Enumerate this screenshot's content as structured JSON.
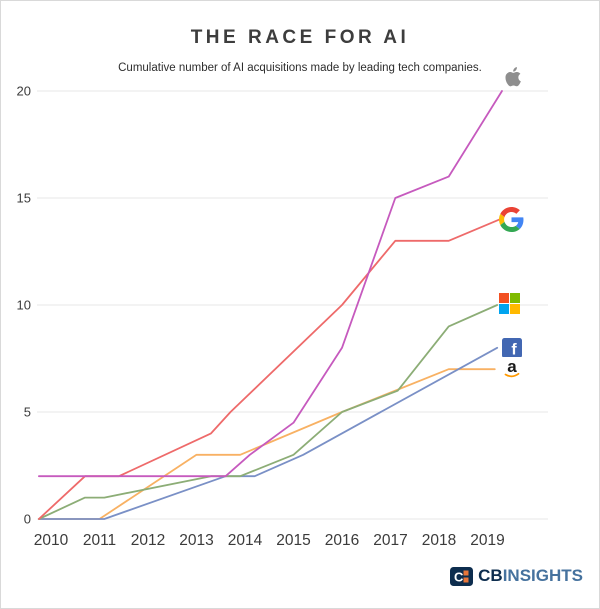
{
  "chart_data": {
    "type": "line",
    "title": "THE RACE FOR AI",
    "subtitle": "Cumulative number of AI acquisitions made by leading tech companies.",
    "xlabel": "",
    "ylabel": "",
    "x_ticks": [
      2010,
      2011,
      2012,
      2013,
      2014,
      2015,
      2016,
      2017,
      2018,
      2019
    ],
    "y_ticks": [
      0,
      5,
      10,
      15,
      20
    ],
    "xlim": [
      2009.75,
      2020.2
    ],
    "ylim": [
      0,
      20.5
    ],
    "grid": "horizontal",
    "legend_position": "right-end-icons",
    "series": [
      {
        "name": "Apple",
        "icon": "apple-logo",
        "color": "#c65abe",
        "end_value": 20,
        "points": [
          [
            2009.75,
            2
          ],
          [
            2013.6,
            2
          ],
          [
            2014.1,
            3
          ],
          [
            2015,
            4.5
          ],
          [
            2016,
            8
          ],
          [
            2017.1,
            15
          ],
          [
            2018.2,
            16
          ],
          [
            2019.3,
            20
          ]
        ]
      },
      {
        "name": "Google",
        "icon": "google-logo",
        "color": "#ee6a6a",
        "end_value": 14,
        "points": [
          [
            2009.75,
            0
          ],
          [
            2010.7,
            2
          ],
          [
            2011.4,
            2
          ],
          [
            2013.3,
            4
          ],
          [
            2013.7,
            5
          ],
          [
            2016,
            10
          ],
          [
            2017.1,
            13
          ],
          [
            2018.2,
            13
          ],
          [
            2019.25,
            14
          ]
        ]
      },
      {
        "name": "Microsoft",
        "icon": "microsoft-logo",
        "color": "#8cad76",
        "end_value": 10,
        "points": [
          [
            2009.75,
            0
          ],
          [
            2010.7,
            1
          ],
          [
            2011.1,
            1
          ],
          [
            2013.3,
            2
          ],
          [
            2013.9,
            2
          ],
          [
            2015,
            3
          ],
          [
            2016,
            5
          ],
          [
            2017.15,
            6
          ],
          [
            2018.2,
            9
          ],
          [
            2019.2,
            10
          ]
        ]
      },
      {
        "name": "Facebook",
        "icon": "facebook-logo",
        "color": "#7a90c6",
        "end_value": 8,
        "points": [
          [
            2009.75,
            0
          ],
          [
            2011.1,
            0
          ],
          [
            2013.6,
            2
          ],
          [
            2014.2,
            2
          ],
          [
            2015.2,
            3
          ],
          [
            2019.2,
            8
          ]
        ]
      },
      {
        "name": "Amazon",
        "icon": "amazon-logo",
        "color": "#f8b163",
        "end_value": 7,
        "points": [
          [
            2009.75,
            0
          ],
          [
            2011,
            0
          ],
          [
            2013,
            3
          ],
          [
            2013.9,
            3
          ],
          [
            2016,
            5
          ],
          [
            2018.2,
            7
          ],
          [
            2019.15,
            7
          ]
        ]
      }
    ],
    "colors": {
      "gridline": "#ececec",
      "tick_label": "#3b3b3b",
      "google_blue": "#4285F4",
      "google_red": "#EA4335",
      "google_yellow": "#FBBC05",
      "google_green": "#34A853",
      "ms_red": "#f25022",
      "ms_green": "#7fba00",
      "ms_blue": "#00a4ef",
      "ms_yellow": "#ffb900",
      "facebook_blue": "#4267b2",
      "amazon_orange": "#ff9900",
      "apple_gray": "#8e8e8e",
      "brand_navy": "#0d2d4e",
      "brand_steel": "#46729e"
    }
  },
  "footer": {
    "brand_bold": "CB",
    "brand_light": "INSIGHTS"
  }
}
